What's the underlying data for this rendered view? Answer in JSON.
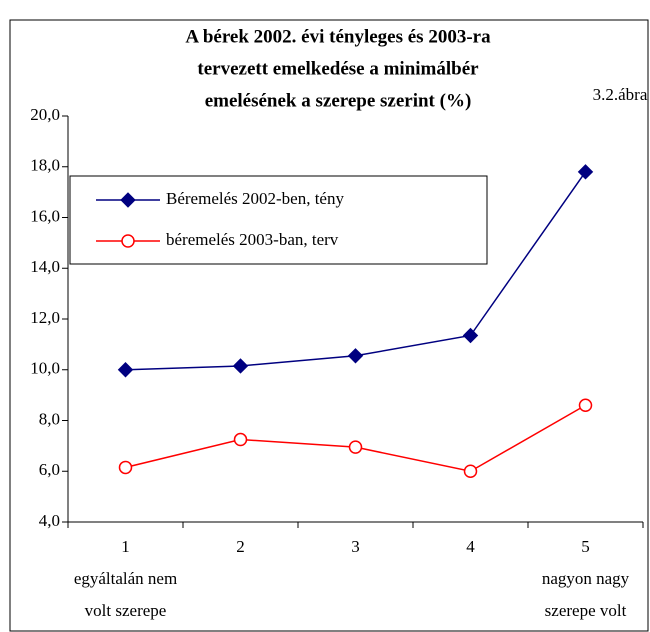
{
  "chart_data": {
    "type": "line",
    "title": [
      "A bérek 2002. évi tényleges és 2003-ra",
      "tervezett emelkedése a minimálbér",
      "emelésének a szerepe szerint (%)"
    ],
    "figure_label": "3.2.ábra",
    "categories": [
      "1",
      "2",
      "3",
      "4",
      "5"
    ],
    "category_notes": [
      {
        "category": 0,
        "lines": [
          "egyáltalán nem",
          "volt szerepe"
        ]
      },
      {
        "category": 4,
        "lines": [
          "nagyon nagy",
          "szerepe volt"
        ]
      }
    ],
    "series": [
      {
        "name": "Béremelés 2002-ben, tény",
        "color": "#000080",
        "marker": "diamond",
        "values": [
          10.0,
          10.15,
          10.55,
          11.35,
          17.8
        ]
      },
      {
        "name": "béremelés 2003-ban, terv",
        "color": "#ff0000",
        "marker": "circle",
        "values": [
          6.15,
          7.25,
          6.95,
          6.0,
          8.6
        ]
      }
    ],
    "ylim": [
      4,
      20
    ],
    "yticks": [
      {
        "value": 4,
        "label": "4,0"
      },
      {
        "value": 6,
        "label": "6,0"
      },
      {
        "value": 8,
        "label": "8,0"
      },
      {
        "value": 10,
        "label": "10,0"
      },
      {
        "value": 12,
        "label": "12,0"
      },
      {
        "value": 14,
        "label": "14,0"
      },
      {
        "value": 16,
        "label": "16,0"
      },
      {
        "value": 18,
        "label": "18,0"
      },
      {
        "value": 20,
        "label": "20,0"
      }
    ],
    "legend": "upper left"
  }
}
